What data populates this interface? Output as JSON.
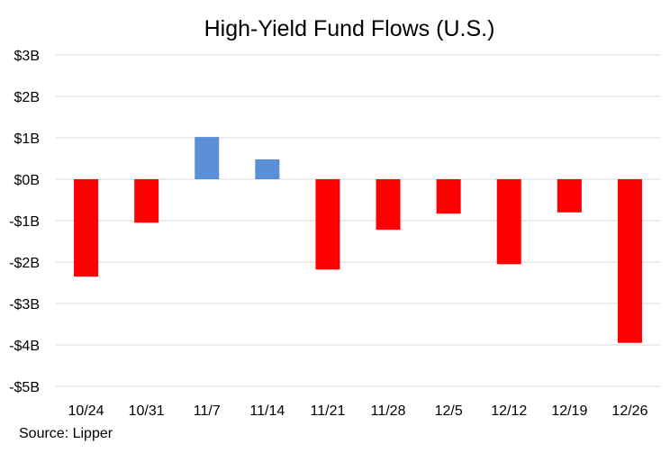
{
  "chart_data": {
    "type": "bar",
    "title": "High-Yield Fund Flows (U.S.)",
    "xlabel": "",
    "ylabel": "",
    "categories": [
      "10/24",
      "10/31",
      "11/7",
      "11/14",
      "11/21",
      "11/28",
      "12/5",
      "12/12",
      "12/19",
      "12/26"
    ],
    "series": [
      {
        "values": [
          -2.35,
          -1.05,
          1.02,
          0.48,
          -2.18,
          -1.22,
          -0.83,
          -2.05,
          -0.8,
          -3.95
        ]
      }
    ],
    "ylim": [
      -5,
      3
    ],
    "yticks": [
      3,
      2,
      1,
      0,
      -1,
      -2,
      -3,
      -4,
      -5
    ],
    "ytick_labels": [
      "$3B",
      "$2B",
      "$1B",
      "$0B",
      "-$1B",
      "-$2B",
      "-$3B",
      "-$4B",
      "-$5B"
    ],
    "grid": true,
    "legend": "none",
    "colors": {
      "positive": "#5B8FD6",
      "negative": "#FF0000",
      "grid": "#D9D9D9"
    }
  },
  "footer": {
    "source": "Source: Lipper"
  }
}
